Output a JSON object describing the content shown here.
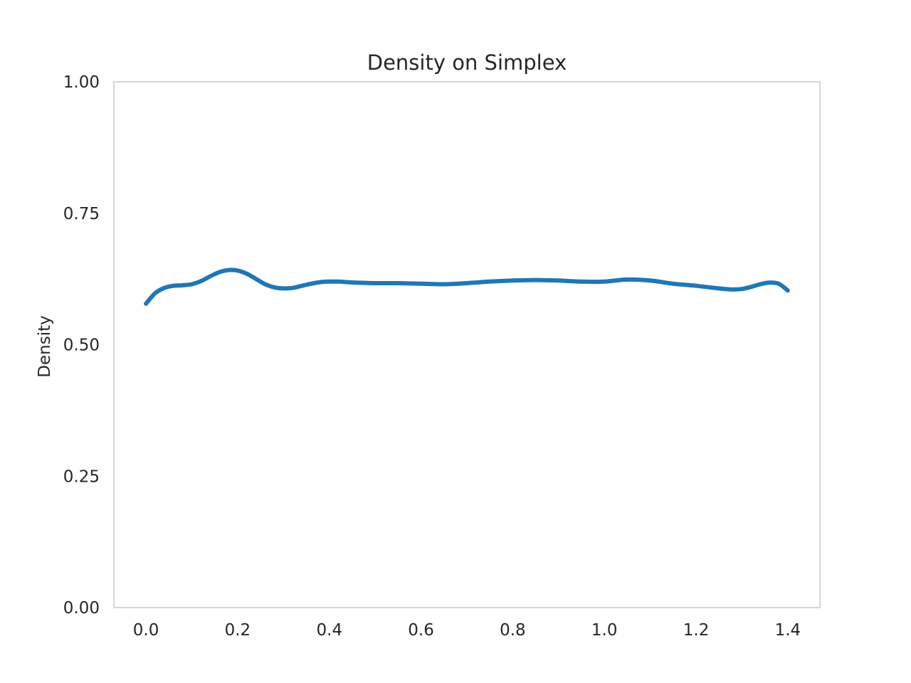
{
  "chart_data": {
    "type": "line",
    "title": "Density on Simplex",
    "xlabel": "",
    "ylabel": "Density",
    "xlim": [
      -0.07,
      1.47
    ],
    "ylim": [
      0.0,
      1.0
    ],
    "xticks": [
      0.0,
      0.2,
      0.4,
      0.6,
      0.8,
      1.0,
      1.2,
      1.4
    ],
    "xtick_labels": [
      "0.0",
      "0.2",
      "0.4",
      "0.6",
      "0.8",
      "1.0",
      "1.2",
      "1.4"
    ],
    "yticks": [
      0.0,
      0.25,
      0.5,
      0.75,
      1.0
    ],
    "ytick_labels": [
      "0.00",
      "0.25",
      "0.50",
      "0.75",
      "1.00"
    ],
    "grid": false,
    "legend": "none",
    "colors": {
      "line": "#1f77b4",
      "frame": "#cccccc",
      "text": "#262626",
      "background": "#ffffff"
    },
    "series": [
      {
        "x": [
          0.0,
          0.02,
          0.04,
          0.06,
          0.08,
          0.1,
          0.12,
          0.14,
          0.16,
          0.18,
          0.2,
          0.22,
          0.24,
          0.26,
          0.28,
          0.3,
          0.32,
          0.34,
          0.36,
          0.38,
          0.4,
          0.42,
          0.44,
          0.46,
          0.5,
          0.55,
          0.6,
          0.65,
          0.7,
          0.75,
          0.8,
          0.85,
          0.9,
          0.95,
          1.0,
          1.05,
          1.1,
          1.15,
          1.2,
          1.25,
          1.28,
          1.3,
          1.32,
          1.34,
          1.36,
          1.38,
          1.4
        ],
        "y": [
          0.578,
          0.598,
          0.608,
          0.612,
          0.613,
          0.615,
          0.621,
          0.63,
          0.638,
          0.642,
          0.641,
          0.635,
          0.625,
          0.615,
          0.609,
          0.607,
          0.608,
          0.612,
          0.616,
          0.619,
          0.62,
          0.62,
          0.619,
          0.618,
          0.617,
          0.617,
          0.616,
          0.615,
          0.617,
          0.62,
          0.622,
          0.623,
          0.622,
          0.62,
          0.62,
          0.624,
          0.622,
          0.616,
          0.612,
          0.607,
          0.605,
          0.606,
          0.61,
          0.615,
          0.618,
          0.616,
          0.603
        ]
      }
    ]
  }
}
